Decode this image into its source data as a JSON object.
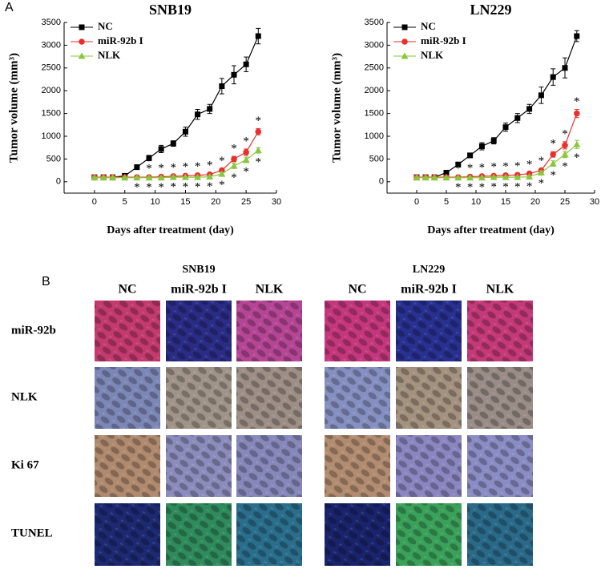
{
  "panel_a": {
    "label": "A"
  },
  "chart_data": [
    {
      "type": "line",
      "title": "SNB19",
      "x_label": "Days after treatment (day)",
      "y_label": "Tumor volume (mm³)",
      "x": [
        0,
        1.5,
        3,
        5,
        7,
        9,
        11,
        13,
        15,
        17,
        19,
        21,
        23,
        25,
        27
      ],
      "series": [
        {
          "name": "NC",
          "color": "#000000",
          "marker": "square",
          "values": [
            100,
            100,
            100,
            130,
            320,
            520,
            720,
            840,
            1100,
            1480,
            1600,
            2100,
            2350,
            2580,
            3200
          ],
          "errors": [
            30,
            20,
            20,
            20,
            50,
            60,
            80,
            60,
            100,
            110,
            100,
            170,
            200,
            160,
            170
          ]
        },
        {
          "name": "miR-92b I",
          "color": "#e8312f",
          "marker": "circle",
          "values": [
            100,
            100,
            100,
            100,
            100,
            100,
            110,
            120,
            130,
            140,
            160,
            250,
            500,
            650,
            1100
          ],
          "errors": [
            15,
            15,
            15,
            15,
            15,
            15,
            20,
            20,
            20,
            20,
            25,
            40,
            60,
            70,
            70
          ]
        },
        {
          "name": "NLK",
          "color": "#8cc63f",
          "marker": "triangle",
          "values": [
            90,
            90,
            90,
            90,
            90,
            90,
            90,
            100,
            100,
            100,
            110,
            170,
            350,
            480,
            690
          ],
          "errors": [
            15,
            15,
            15,
            15,
            15,
            15,
            15,
            15,
            15,
            20,
            20,
            40,
            60,
            60,
            60
          ]
        }
      ],
      "significance_label": "*",
      "significant_x": [
        7,
        9,
        11,
        13,
        15,
        17,
        19,
        21,
        23,
        25,
        27
      ],
      "xlim": [
        -5,
        30
      ],
      "xticks": [
        0,
        5,
        10,
        15,
        20,
        25,
        30
      ],
      "ylim": [
        -250,
        3500
      ],
      "yticks": [
        0,
        500,
        1000,
        1500,
        2000,
        2500,
        3000,
        3500
      ],
      "legend": "upper left",
      "grid": false
    },
    {
      "type": "line",
      "title": "LN229",
      "x_label": "Days after treatment (day)",
      "y_label": "Tumor volume (mm³)",
      "x": [
        0,
        1.5,
        3,
        5,
        7,
        9,
        11,
        13,
        15,
        17,
        19,
        21,
        23,
        25,
        27
      ],
      "series": [
        {
          "name": "NC",
          "color": "#000000",
          "marker": "square",
          "values": [
            100,
            100,
            100,
            200,
            380,
            580,
            780,
            900,
            1200,
            1400,
            1600,
            1900,
            2300,
            2500,
            3200
          ],
          "errors": [
            20,
            20,
            20,
            30,
            40,
            50,
            80,
            70,
            90,
            100,
            100,
            180,
            180,
            220,
            120
          ]
        },
        {
          "name": "miR-92b I",
          "color": "#e8312f",
          "marker": "circle",
          "values": [
            100,
            100,
            100,
            100,
            100,
            110,
            120,
            130,
            140,
            150,
            180,
            250,
            600,
            800,
            1500
          ],
          "errors": [
            15,
            15,
            15,
            15,
            15,
            15,
            20,
            20,
            20,
            20,
            25,
            40,
            60,
            80,
            90
          ]
        },
        {
          "name": "NLK",
          "color": "#8cc63f",
          "marker": "triangle",
          "values": [
            90,
            90,
            90,
            90,
            90,
            90,
            90,
            100,
            100,
            100,
            110,
            200,
            400,
            600,
            820
          ],
          "errors": [
            15,
            15,
            15,
            15,
            15,
            15,
            15,
            15,
            15,
            20,
            20,
            40,
            60,
            70,
            90
          ]
        }
      ],
      "significance_label": "*",
      "significant_x": [
        7,
        9,
        11,
        13,
        15,
        17,
        19,
        21,
        23,
        25,
        27
      ],
      "xlim": [
        -5,
        30
      ],
      "xticks": [
        0,
        5,
        10,
        15,
        20,
        25,
        30
      ],
      "ylim": [
        -250,
        3500
      ],
      "yticks": [
        0,
        500,
        1000,
        1500,
        2000,
        2500,
        3000,
        3500
      ],
      "legend": "upper left",
      "grid": false
    }
  ],
  "panel_b": {
    "label": "B",
    "groups": [
      {
        "title": "SNB19",
        "columns": [
          "NC",
          "miR-92b I",
          "NLK"
        ]
      },
      {
        "title": "LN229",
        "columns": [
          "NC",
          "miR-92b I",
          "NLK"
        ]
      }
    ],
    "rows": [
      "miR-92b",
      "NLK",
      "Ki 67",
      "TUNEL"
    ]
  }
}
